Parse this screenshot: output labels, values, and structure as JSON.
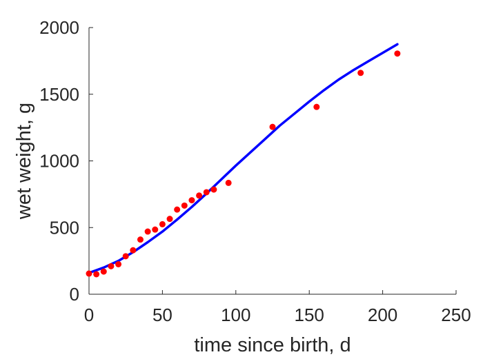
{
  "chart_data": {
    "type": "scatter",
    "xlabel": "time since birth, d",
    "ylabel": "wet weight, g",
    "xlim": [
      0,
      250
    ],
    "ylim": [
      0,
      2000
    ],
    "xticks": [
      0,
      50,
      100,
      150,
      200,
      250
    ],
    "yticks": [
      0,
      500,
      1000,
      1500,
      2000
    ],
    "xtick_labels": [
      "0",
      "50",
      "100",
      "150",
      "200",
      "250"
    ],
    "ytick_labels": [
      "0",
      "500",
      "1000",
      "1500",
      "2000"
    ],
    "grid": false,
    "series": [
      {
        "kind": "points",
        "color": "#ff0000",
        "x": [
          0,
          5,
          10,
          15,
          20,
          25,
          30,
          35,
          40,
          45,
          50,
          55,
          60,
          65,
          70,
          75,
          80,
          85,
          95,
          125,
          155,
          185,
          210
        ],
        "y": [
          155,
          150,
          170,
          210,
          225,
          285,
          330,
          410,
          470,
          485,
          525,
          565,
          635,
          665,
          705,
          740,
          765,
          785,
          835,
          1255,
          1405,
          1660,
          1805
        ]
      },
      {
        "kind": "line",
        "color": "#0000ff",
        "x": [
          0,
          10,
          20,
          30,
          40,
          50,
          60,
          70,
          80,
          90,
          100,
          110,
          120,
          130,
          140,
          150,
          160,
          170,
          180,
          190,
          200,
          210
        ],
        "y": [
          160,
          200,
          250,
          315,
          390,
          470,
          560,
          655,
          755,
          860,
          965,
          1065,
          1165,
          1265,
          1355,
          1445,
          1530,
          1610,
          1680,
          1745,
          1810,
          1875
        ]
      }
    ]
  }
}
